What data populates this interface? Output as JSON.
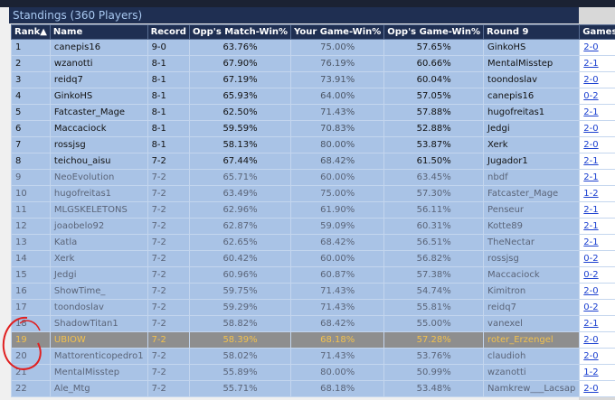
{
  "title": "Standings (360 Players)",
  "table": {
    "columns": [
      "Rank▲",
      "Name",
      "Record",
      "Opp's Match-Win%",
      "Your Game-Win%",
      "Opp's Game-Win%",
      "Round 9",
      "Games"
    ],
    "rows": [
      [
        "1",
        "canepis16",
        "9-0",
        "63.76%",
        "75.00%",
        "57.65%",
        "GinkoHS",
        "2-0"
      ],
      [
        "2",
        "wzanotti",
        "8-1",
        "67.90%",
        "76.19%",
        "60.66%",
        "MentalMisstep",
        "2-1"
      ],
      [
        "3",
        "reidq7",
        "8-1",
        "67.19%",
        "73.91%",
        "60.04%",
        "toondoslav",
        "2-0"
      ],
      [
        "4",
        "GinkoHS",
        "8-1",
        "65.93%",
        "64.00%",
        "57.05%",
        "canepis16",
        "0-2"
      ],
      [
        "5",
        "Fatcaster_Mage",
        "8-1",
        "62.50%",
        "71.43%",
        "57.88%",
        "hugofreitas1",
        "2-1"
      ],
      [
        "6",
        "Maccaciock",
        "8-1",
        "59.59%",
        "70.83%",
        "52.88%",
        "Jedgi",
        "2-0"
      ],
      [
        "7",
        "rossjsg",
        "8-1",
        "58.13%",
        "80.00%",
        "53.87%",
        "Xerk",
        "2-0"
      ],
      [
        "8",
        "teichou_aisu",
        "7-2",
        "67.44%",
        "68.42%",
        "61.50%",
        "Jugador1",
        "2-1"
      ],
      [
        "9",
        "NeoEvolution",
        "7-2",
        "65.71%",
        "60.00%",
        "63.45%",
        "nbdf",
        "2-1"
      ],
      [
        "10",
        "hugofreitas1",
        "7-2",
        "63.49%",
        "75.00%",
        "57.30%",
        "Fatcaster_Mage",
        "1-2"
      ],
      [
        "11",
        "MLGSKELETONS",
        "7-2",
        "62.96%",
        "61.90%",
        "56.11%",
        "Penseur",
        "2-1"
      ],
      [
        "12",
        "joaobelo92",
        "7-2",
        "62.87%",
        "59.09%",
        "60.31%",
        "Kotte89",
        "2-1"
      ],
      [
        "13",
        "Katla",
        "7-2",
        "62.65%",
        "68.42%",
        "56.51%",
        "TheNectar",
        "2-1"
      ],
      [
        "14",
        "Xerk",
        "7-2",
        "60.42%",
        "60.00%",
        "56.82%",
        "rossjsg",
        "0-2"
      ],
      [
        "15",
        "Jedgi",
        "7-2",
        "60.96%",
        "60.87%",
        "57.38%",
        "Maccaciock",
        "0-2"
      ],
      [
        "16",
        "ShowTime_",
        "7-2",
        "59.75%",
        "71.43%",
        "54.74%",
        "Kimitron",
        "2-0"
      ],
      [
        "17",
        "toondoslav",
        "7-2",
        "59.29%",
        "71.43%",
        "55.81%",
        "reidq7",
        "0-2"
      ],
      [
        "18",
        "ShadowTitan1",
        "7-2",
        "58.82%",
        "68.42%",
        "55.00%",
        "vanexel",
        "2-1"
      ],
      [
        "19",
        "UBIOW",
        "7-2",
        "58.39%",
        "68.18%",
        "57.28%",
        "roter_Erzengel",
        "2-0"
      ],
      [
        "20",
        "Mattorenticopedro1",
        "7-2",
        "58.02%",
        "71.43%",
        "53.76%",
        "claudioh",
        "2-0"
      ],
      [
        "21",
        "MentalMisstep",
        "7-2",
        "55.89%",
        "80.00%",
        "50.99%",
        "wzanotti",
        "1-2"
      ],
      [
        "22",
        "Ale_Mtg",
        "7-2",
        "55.71%",
        "68.18%",
        "53.48%",
        "Namkrew___Lacsap",
        "2-0"
      ]
    ],
    "highlighted_row": 18
  }
}
